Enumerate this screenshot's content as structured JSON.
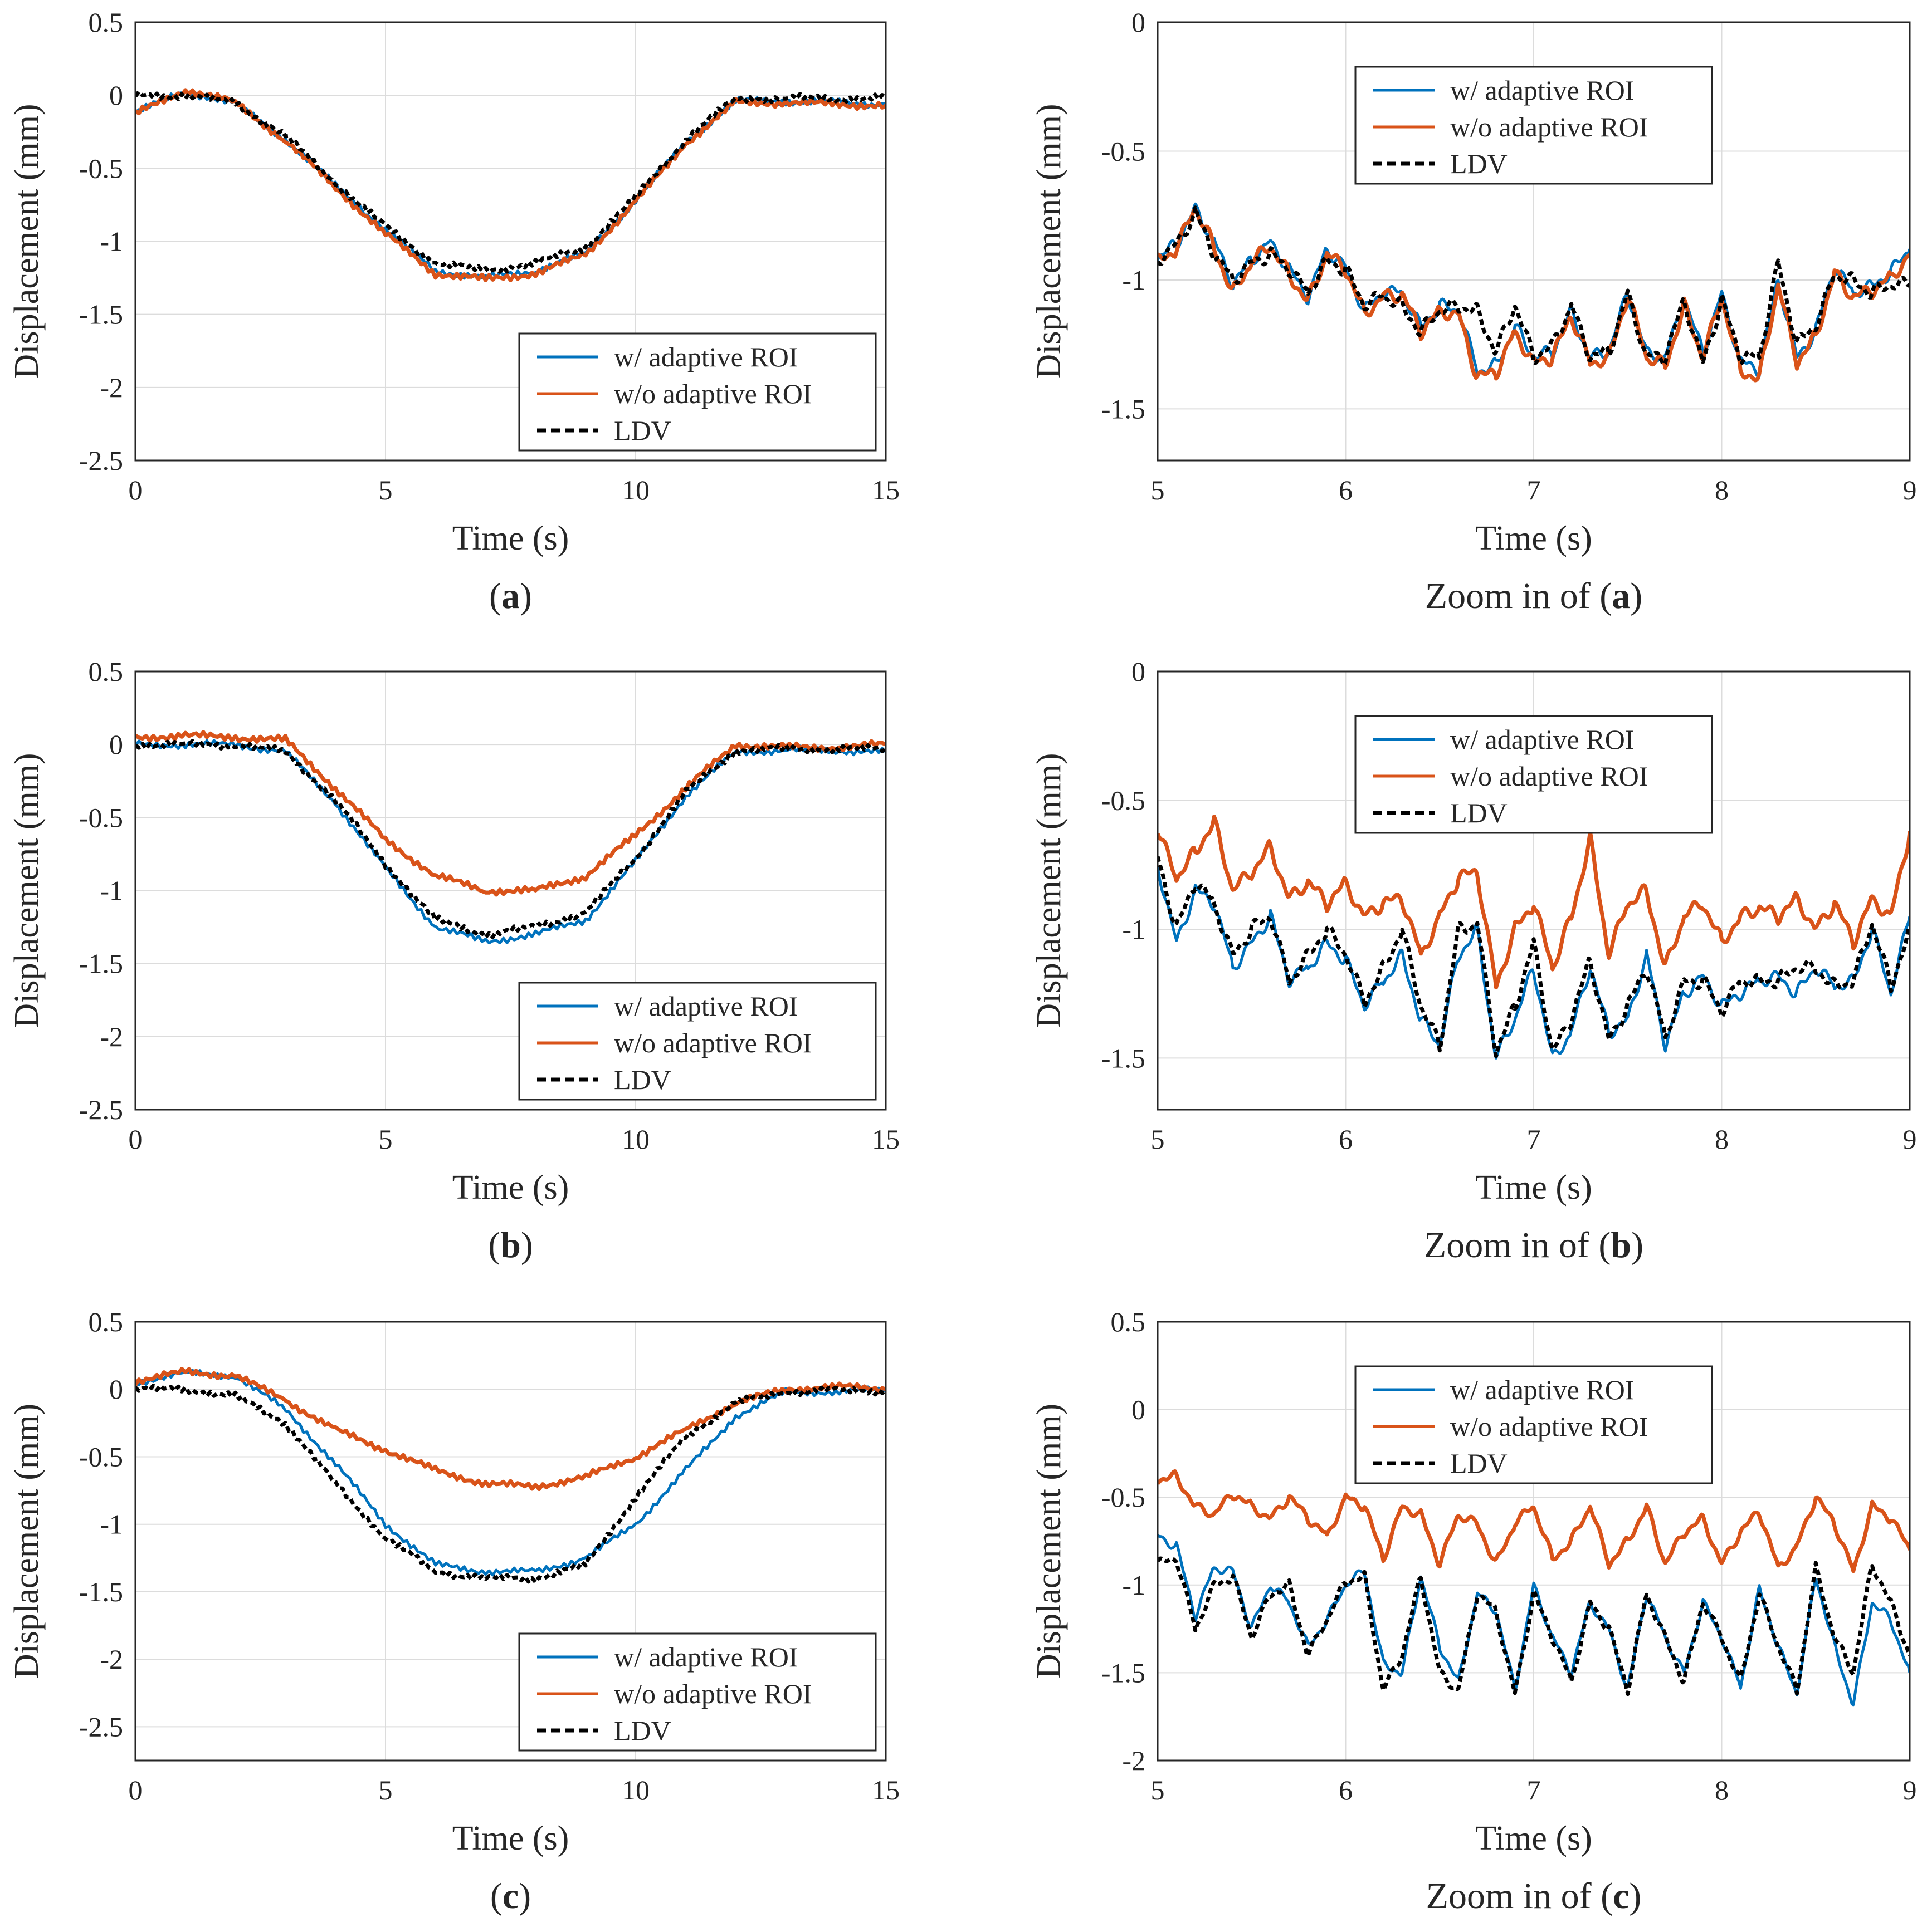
{
  "figure": {
    "colors": {
      "adaptive": "#0072BD",
      "no_adaptive": "#D95319",
      "ldv": "#000000",
      "grid": "#dcdcdc",
      "axis": "#262626"
    }
  },
  "chart_data": [
    {
      "id": "a",
      "type": "line",
      "caption_prefix": "(",
      "caption_bold": "a",
      "caption_suffix": ")",
      "xlabel": "Time (s)",
      "ylabel": "Displacement (mm)",
      "xlim": [
        0,
        15
      ],
      "ylim": [
        -2.5,
        0.5
      ],
      "xticks": [
        "0",
        "5",
        "10",
        "15"
      ],
      "yticks": [
        "0.5",
        "0",
        "-0.5",
        "-1",
        "-1.5",
        "-2",
        "-2.5"
      ],
      "legend_position": "lower-right",
      "x": [
        0,
        1,
        2,
        3,
        4,
        5,
        6,
        7,
        8,
        9,
        10,
        11,
        12,
        13,
        14,
        15
      ],
      "series": [
        {
          "name": "w/ adaptive ROI",
          "style": "solid",
          "color": "#0072BD",
          "values": [
            -0.12,
            0.03,
            -0.06,
            -0.3,
            -0.62,
            -0.92,
            -1.2,
            -1.25,
            -1.2,
            -1.08,
            -0.72,
            -0.32,
            -0.04,
            -0.04,
            -0.05,
            -0.06
          ]
        },
        {
          "name": "w/o adaptive ROI",
          "style": "solid",
          "color": "#D95319",
          "values": [
            -0.13,
            0.04,
            -0.05,
            -0.31,
            -0.63,
            -0.95,
            -1.22,
            -1.26,
            -1.22,
            -1.09,
            -0.73,
            -0.33,
            -0.05,
            -0.05,
            -0.06,
            -0.07
          ]
        },
        {
          "name": "LDV",
          "style": "dashed",
          "color": "#000000",
          "values": [
            0.0,
            0.0,
            -0.05,
            -0.28,
            -0.6,
            -0.9,
            -1.15,
            -1.2,
            -1.15,
            -1.04,
            -0.7,
            -0.3,
            -0.02,
            -0.02,
            -0.02,
            -0.02
          ]
        }
      ]
    },
    {
      "id": "a-zoom",
      "type": "line",
      "caption_prefix": "Zoom in of (",
      "caption_bold": "a",
      "caption_suffix": ")",
      "xlabel": "Time (s)",
      "ylabel": "Displacement (mm)",
      "xlim": [
        5,
        9
      ],
      "ylim": [
        -1.7,
        0
      ],
      "xticks": [
        "5",
        "6",
        "7",
        "8",
        "9"
      ],
      "yticks": [
        "0",
        "-0.5",
        "-1",
        "-1.5"
      ],
      "legend_position": "top-center",
      "x": [
        5,
        5.1,
        5.2,
        5.3,
        5.4,
        5.5,
        5.6,
        5.7,
        5.8,
        5.9,
        6,
        6.1,
        6.2,
        6.3,
        6.4,
        6.5,
        6.6,
        6.7,
        6.8,
        6.9,
        7,
        7.1,
        7.2,
        7.3,
        7.4,
        7.5,
        7.6,
        7.7,
        7.8,
        7.9,
        8,
        8.1,
        8.2,
        8.3,
        8.4,
        8.5,
        8.6,
        8.7,
        8.8,
        8.9,
        9
      ],
      "series": [
        {
          "name": "w/ adaptive ROI",
          "style": "solid",
          "color": "#0072BD",
          "values": [
            -0.92,
            -0.86,
            -0.72,
            -0.85,
            -1.02,
            -0.92,
            -0.85,
            -0.96,
            -1.07,
            -0.88,
            -0.95,
            -1.12,
            -1.05,
            -1.05,
            -1.18,
            -1.1,
            -1.12,
            -1.35,
            -1.33,
            -1.18,
            -1.3,
            -1.28,
            -1.12,
            -1.3,
            -1.28,
            -1.05,
            -1.28,
            -1.3,
            -1.08,
            -1.28,
            -1.05,
            -1.32,
            -1.35,
            -1.0,
            -1.3,
            -1.2,
            -0.95,
            -1.05,
            -1.02,
            -0.97,
            -0.88
          ]
        },
        {
          "name": "w/o adaptive ROI",
          "style": "solid",
          "color": "#D95319",
          "values": [
            -0.93,
            -0.88,
            -0.72,
            -0.87,
            -1.05,
            -0.93,
            -0.87,
            -0.98,
            -1.08,
            -0.9,
            -0.96,
            -1.13,
            -1.06,
            -1.06,
            -1.2,
            -1.12,
            -1.13,
            -1.38,
            -1.36,
            -1.2,
            -1.32,
            -1.3,
            -1.14,
            -1.32,
            -1.3,
            -1.06,
            -1.3,
            -1.33,
            -1.1,
            -1.3,
            -1.07,
            -1.35,
            -1.38,
            -1.02,
            -1.32,
            -1.22,
            -0.97,
            -1.07,
            -1.04,
            -0.99,
            -0.9
          ]
        },
        {
          "name": "LDV",
          "style": "dashed",
          "color": "#000000",
          "values": [
            -0.92,
            -0.86,
            -0.74,
            -0.9,
            -1.0,
            -0.93,
            -0.9,
            -0.96,
            -1.05,
            -0.92,
            -0.96,
            -1.1,
            -1.06,
            -1.1,
            -1.2,
            -1.12,
            -1.1,
            -1.12,
            -1.28,
            -1.1,
            -1.3,
            -1.25,
            -1.1,
            -1.3,
            -1.28,
            -1.05,
            -1.3,
            -1.3,
            -1.08,
            -1.32,
            -1.08,
            -1.3,
            -1.3,
            -0.93,
            -1.25,
            -1.18,
            -0.98,
            -1.0,
            -1.05,
            -1.02,
            -1.02
          ]
        }
      ]
    },
    {
      "id": "b",
      "type": "line",
      "caption_prefix": "(",
      "caption_bold": "b",
      "caption_suffix": ")",
      "xlabel": "Time (s)",
      "ylabel": "Displacement (mm)",
      "xlim": [
        0,
        15
      ],
      "ylim": [
        -2.5,
        0.5
      ],
      "xticks": [
        "0",
        "5",
        "10",
        "15"
      ],
      "yticks": [
        "0.5",
        "0",
        "-0.5",
        "-1",
        "-1.5",
        "-2",
        "-2.5"
      ],
      "legend_position": "lower-right",
      "x": [
        0,
        1,
        2,
        3,
        4,
        5,
        6,
        7,
        8,
        9,
        10,
        11,
        12,
        13,
        14,
        15
      ],
      "series": [
        {
          "name": "w/ adaptive ROI",
          "style": "solid",
          "color": "#0072BD",
          "values": [
            0.0,
            0.0,
            0.0,
            -0.05,
            -0.4,
            -0.85,
            -1.25,
            -1.35,
            -1.3,
            -1.2,
            -0.8,
            -0.35,
            -0.05,
            -0.04,
            -0.04,
            -0.05
          ]
        },
        {
          "name": "w/o adaptive ROI",
          "style": "solid",
          "color": "#D95319",
          "values": [
            0.05,
            0.06,
            0.05,
            0.03,
            -0.3,
            -0.65,
            -0.9,
            -1.0,
            -1.0,
            -0.9,
            -0.62,
            -0.3,
            0.0,
            -0.02,
            -0.02,
            0.0
          ]
        },
        {
          "name": "LDV",
          "style": "dashed",
          "color": "#000000",
          "values": [
            0.0,
            0.0,
            0.0,
            -0.05,
            -0.38,
            -0.82,
            -1.2,
            -1.3,
            -1.25,
            -1.15,
            -0.78,
            -0.33,
            -0.04,
            -0.03,
            -0.03,
            -0.03
          ]
        }
      ]
    },
    {
      "id": "b-zoom",
      "type": "line",
      "caption_prefix": "Zoom in of (",
      "caption_bold": "b",
      "caption_suffix": ")",
      "xlabel": "Time (s)",
      "ylabel": "Displacement (mm)",
      "xlim": [
        5,
        9
      ],
      "ylim": [
        -1.7,
        0
      ],
      "xticks": [
        "5",
        "6",
        "7",
        "8",
        "9"
      ],
      "yticks": [
        "0",
        "-0.5",
        "-1",
        "-1.5"
      ],
      "legend_position": "top-center",
      "x": [
        5,
        5.1,
        5.2,
        5.3,
        5.4,
        5.5,
        5.6,
        5.7,
        5.8,
        5.9,
        6,
        6.1,
        6.2,
        6.3,
        6.4,
        6.5,
        6.6,
        6.7,
        6.8,
        6.9,
        7,
        7.1,
        7.2,
        7.3,
        7.4,
        7.5,
        7.6,
        7.7,
        7.8,
        7.9,
        8,
        8.1,
        8.2,
        8.3,
        8.4,
        8.5,
        8.6,
        8.7,
        8.8,
        8.9,
        9
      ],
      "series": [
        {
          "name": "w/ adaptive ROI",
          "style": "solid",
          "color": "#0072BD",
          "values": [
            -0.75,
            -1.05,
            -0.85,
            -0.9,
            -1.15,
            -1.05,
            -0.95,
            -1.2,
            -1.15,
            -1.05,
            -1.12,
            -1.3,
            -1.2,
            -1.1,
            -1.35,
            -1.45,
            -1.1,
            -1.0,
            -1.5,
            -1.35,
            -1.15,
            -1.5,
            -1.4,
            -1.15,
            -1.4,
            -1.35,
            -1.1,
            -1.45,
            -1.25,
            -1.18,
            -1.3,
            -1.25,
            -1.2,
            -1.18,
            -1.25,
            -1.15,
            -1.22,
            -1.2,
            -1.0,
            -1.25,
            -0.95
          ]
        },
        {
          "name": "w/o adaptive ROI",
          "style": "solid",
          "color": "#D95319",
          "values": [
            -0.62,
            -0.8,
            -0.7,
            -0.58,
            -0.85,
            -0.78,
            -0.68,
            -0.88,
            -0.82,
            -0.9,
            -0.82,
            -0.95,
            -0.9,
            -0.88,
            -1.1,
            -0.95,
            -0.8,
            -0.78,
            -1.22,
            -1.0,
            -0.9,
            -1.15,
            -0.95,
            -0.65,
            -1.1,
            -0.9,
            -0.85,
            -1.15,
            -0.95,
            -0.9,
            -1.05,
            -0.95,
            -0.92,
            -0.95,
            -0.88,
            -1.0,
            -0.9,
            -1.05,
            -0.88,
            -0.95,
            -0.62
          ]
        },
        {
          "name": "LDV",
          "style": "dashed",
          "color": "#000000",
          "values": [
            -0.72,
            -1.0,
            -0.82,
            -0.9,
            -1.1,
            -1.0,
            -0.95,
            -1.2,
            -1.1,
            -1.0,
            -1.1,
            -1.28,
            -1.15,
            -1.0,
            -1.3,
            -1.45,
            -1.0,
            -0.98,
            -1.48,
            -1.3,
            -1.05,
            -1.48,
            -1.35,
            -1.12,
            -1.43,
            -1.3,
            -1.15,
            -1.42,
            -1.2,
            -1.2,
            -1.32,
            -1.2,
            -1.2,
            -1.2,
            -1.15,
            -1.15,
            -1.22,
            -1.2,
            -0.98,
            -1.22,
            -1.0
          ]
        }
      ]
    },
    {
      "id": "c",
      "type": "line",
      "caption_prefix": "(",
      "caption_bold": "c",
      "caption_suffix": ")",
      "xlabel": "Time (s)",
      "ylabel": "Displacement (mm)",
      "xlim": [
        0,
        15
      ],
      "ylim": [
        -2.75,
        0.5
      ],
      "xticks": [
        "0",
        "5",
        "10",
        "15"
      ],
      "yticks": [
        "0.5",
        "0",
        "-0.5",
        "-1",
        "-1.5",
        "-2",
        "-2.5"
      ],
      "legend_position": "lower-right",
      "x": [
        0,
        1,
        2,
        3,
        4,
        5,
        6,
        7,
        8,
        9,
        10,
        11,
        12,
        13,
        14,
        15
      ],
      "series": [
        {
          "name": "w/ adaptive ROI",
          "style": "solid",
          "color": "#0072BD",
          "values": [
            0.05,
            0.12,
            0.1,
            -0.15,
            -0.55,
            -1.0,
            -1.3,
            -1.35,
            -1.35,
            -1.25,
            -1.0,
            -0.6,
            -0.2,
            -0.02,
            -0.02,
            0.0
          ]
        },
        {
          "name": "w/o adaptive ROI",
          "style": "solid",
          "color": "#D95319",
          "values": [
            0.06,
            0.13,
            0.1,
            -0.08,
            -0.3,
            -0.45,
            -0.6,
            -0.7,
            -0.72,
            -0.65,
            -0.5,
            -0.3,
            -0.1,
            0.0,
            0.02,
            0.0
          ]
        },
        {
          "name": "LDV",
          "style": "dashed",
          "color": "#000000",
          "values": [
            0.0,
            0.0,
            -0.05,
            -0.25,
            -0.7,
            -1.1,
            -1.35,
            -1.4,
            -1.4,
            -1.3,
            -0.8,
            -0.35,
            -0.1,
            -0.02,
            -0.01,
            -0.01
          ]
        }
      ]
    },
    {
      "id": "c-zoom",
      "type": "line",
      "caption_prefix": "Zoom in of (",
      "caption_bold": "c",
      "caption_suffix": ")",
      "xlabel": "Time (s)",
      "ylabel": "Displacement (mm)",
      "xlim": [
        5,
        9
      ],
      "ylim": [
        -2,
        0.5
      ],
      "xticks": [
        "5",
        "6",
        "7",
        "8",
        "9"
      ],
      "yticks": [
        "0.5",
        "0",
        "-0.5",
        "-1",
        "-1.5",
        "-2"
      ],
      "legend_position": "top-center",
      "x": [
        5,
        5.1,
        5.2,
        5.3,
        5.4,
        5.5,
        5.6,
        5.7,
        5.8,
        5.9,
        6,
        6.1,
        6.2,
        6.3,
        6.4,
        6.5,
        6.6,
        6.7,
        6.8,
        6.9,
        7,
        7.1,
        7.2,
        7.3,
        7.4,
        7.5,
        7.6,
        7.7,
        7.8,
        7.9,
        8,
        8.1,
        8.2,
        8.3,
        8.4,
        8.5,
        8.6,
        8.7,
        8.8,
        8.9,
        9
      ],
      "series": [
        {
          "name": "w/ adaptive ROI",
          "style": "solid",
          "color": "#0072BD",
          "values": [
            -0.72,
            -0.78,
            -1.18,
            -0.9,
            -0.92,
            -1.25,
            -1.0,
            -1.1,
            -1.35,
            -1.2,
            -1.0,
            -0.92,
            -1.45,
            -1.5,
            -0.95,
            -1.35,
            -1.55,
            -1.05,
            -1.15,
            -1.6,
            -1.0,
            -1.3,
            -1.5,
            -1.1,
            -1.25,
            -1.6,
            -1.05,
            -1.3,
            -1.5,
            -1.1,
            -1.3,
            -1.58,
            -1.02,
            -1.35,
            -1.62,
            -0.95,
            -1.35,
            -1.68,
            -1.1,
            -1.2,
            -1.5
          ]
        },
        {
          "name": "w/o adaptive ROI",
          "style": "solid",
          "color": "#D95319",
          "values": [
            -0.4,
            -0.38,
            -0.55,
            -0.6,
            -0.48,
            -0.55,
            -0.62,
            -0.5,
            -0.62,
            -0.72,
            -0.5,
            -0.55,
            -0.85,
            -0.55,
            -0.6,
            -0.88,
            -0.6,
            -0.65,
            -0.88,
            -0.65,
            -0.55,
            -0.85,
            -0.75,
            -0.55,
            -0.88,
            -0.75,
            -0.55,
            -0.88,
            -0.7,
            -0.62,
            -0.88,
            -0.7,
            -0.58,
            -0.9,
            -0.78,
            -0.5,
            -0.65,
            -0.92,
            -0.55,
            -0.62,
            -0.8
          ]
        },
        {
          "name": "LDV",
          "style": "dashed",
          "color": "#000000",
          "values": [
            -0.88,
            -0.85,
            -1.25,
            -1.0,
            -0.95,
            -1.3,
            -1.05,
            -1.0,
            -1.4,
            -1.2,
            -0.98,
            -0.95,
            -1.6,
            -1.4,
            -0.95,
            -1.5,
            -1.6,
            -1.05,
            -1.15,
            -1.62,
            -1.05,
            -1.3,
            -1.55,
            -1.1,
            -1.25,
            -1.6,
            -1.05,
            -1.3,
            -1.55,
            -1.1,
            -1.3,
            -1.55,
            -1.05,
            -1.35,
            -1.6,
            -0.9,
            -1.3,
            -1.5,
            -0.88,
            -1.1,
            -1.4
          ]
        }
      ]
    }
  ]
}
